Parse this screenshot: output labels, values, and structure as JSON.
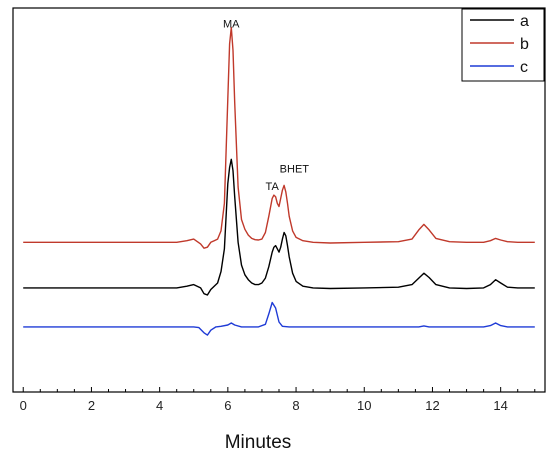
{
  "chart_data": {
    "type": "line",
    "title": "",
    "xlabel": "Minutes",
    "ylabel": "",
    "xlim": [
      -0.3,
      15.3
    ],
    "ylim": [
      -1.2,
      10.6
    ],
    "xticks": [
      0,
      2,
      4,
      6,
      8,
      10,
      12,
      14
    ],
    "xtick_labels": [
      "0",
      "2",
      "4",
      "6",
      "8",
      "10",
      "12",
      "14"
    ],
    "minor_tick_step": 0.5,
    "y_ticks_labeled": false,
    "grid": false,
    "legend_position": "top-right",
    "annotations": [
      {
        "text": "MA",
        "x": 6.1,
        "y": 10.0
      },
      {
        "text": "TA",
        "x": 7.3,
        "y": 5.0
      },
      {
        "text": "BHET",
        "x": 7.95,
        "y": 5.55
      }
    ],
    "series": [
      {
        "name": "a",
        "color": "#000000",
        "x": [
          0,
          4.5,
          4.8,
          5.0,
          5.2,
          5.3,
          5.4,
          5.5,
          5.6,
          5.7,
          5.8,
          5.9,
          6.0,
          6.05,
          6.1,
          6.15,
          6.2,
          6.3,
          6.4,
          6.5,
          6.6,
          6.7,
          6.8,
          6.9,
          7.0,
          7.1,
          7.2,
          7.3,
          7.35,
          7.4,
          7.45,
          7.5,
          7.55,
          7.6,
          7.65,
          7.7,
          7.75,
          7.8,
          7.9,
          8.0,
          8.2,
          8.5,
          9.0,
          10.0,
          11.0,
          11.4,
          11.6,
          11.75,
          11.9,
          12.1,
          12.5,
          13.0,
          13.5,
          13.7,
          13.85,
          14.0,
          14.2,
          14.5,
          15.0
        ],
        "y": [
          2.0,
          2.0,
          2.05,
          2.1,
          2.0,
          1.82,
          1.78,
          1.95,
          2.05,
          2.15,
          2.5,
          3.2,
          5.2,
          5.7,
          5.95,
          5.6,
          4.8,
          3.4,
          2.7,
          2.4,
          2.25,
          2.15,
          2.1,
          2.1,
          2.15,
          2.3,
          2.65,
          3.1,
          3.25,
          3.3,
          3.2,
          3.1,
          3.25,
          3.5,
          3.7,
          3.6,
          3.3,
          2.95,
          2.45,
          2.2,
          2.05,
          2.0,
          1.98,
          2.0,
          2.02,
          2.1,
          2.3,
          2.45,
          2.32,
          2.1,
          2.0,
          1.98,
          2.0,
          2.1,
          2.25,
          2.15,
          2.02,
          2.0,
          2.0
        ]
      },
      {
        "name": "b",
        "color": "#c0392b",
        "x": [
          0,
          4.5,
          4.8,
          5.0,
          5.2,
          5.3,
          5.4,
          5.5,
          5.6,
          5.7,
          5.8,
          5.9,
          6.0,
          6.05,
          6.1,
          6.15,
          6.2,
          6.3,
          6.4,
          6.5,
          6.6,
          6.7,
          6.8,
          6.9,
          7.0,
          7.1,
          7.2,
          7.3,
          7.35,
          7.4,
          7.45,
          7.5,
          7.55,
          7.6,
          7.65,
          7.7,
          7.75,
          7.8,
          7.9,
          8.0,
          8.2,
          8.5,
          9.0,
          10.0,
          11.0,
          11.4,
          11.6,
          11.75,
          11.9,
          12.1,
          12.5,
          13.0,
          13.5,
          13.7,
          13.85,
          14.0,
          14.2,
          14.5,
          15.0
        ],
        "y": [
          3.4,
          3.4,
          3.45,
          3.5,
          3.35,
          3.22,
          3.25,
          3.4,
          3.45,
          3.5,
          3.75,
          4.6,
          7.8,
          9.5,
          10.0,
          9.3,
          7.7,
          5.1,
          4.1,
          3.8,
          3.62,
          3.52,
          3.48,
          3.47,
          3.5,
          3.7,
          4.2,
          4.75,
          4.85,
          4.8,
          4.6,
          4.5,
          4.75,
          5.0,
          5.15,
          4.95,
          4.6,
          4.2,
          3.75,
          3.55,
          3.45,
          3.4,
          3.38,
          3.4,
          3.42,
          3.5,
          3.78,
          3.95,
          3.78,
          3.52,
          3.42,
          3.4,
          3.4,
          3.45,
          3.52,
          3.47,
          3.42,
          3.4,
          3.4
        ]
      },
      {
        "name": "c",
        "color": "#1f3bd6",
        "x": [
          0,
          4.5,
          5.0,
          5.15,
          5.3,
          5.4,
          5.5,
          5.65,
          5.8,
          6.0,
          6.1,
          6.2,
          6.4,
          6.6,
          6.9,
          7.1,
          7.2,
          7.3,
          7.4,
          7.5,
          7.6,
          7.8,
          8.0,
          8.5,
          9.0,
          10.0,
          11.0,
          11.6,
          11.75,
          11.9,
          12.5,
          13.5,
          13.7,
          13.85,
          14.0,
          14.2,
          15.0
        ],
        "y": [
          0.8,
          0.8,
          0.8,
          0.78,
          0.62,
          0.55,
          0.7,
          0.8,
          0.82,
          0.86,
          0.92,
          0.86,
          0.8,
          0.8,
          0.8,
          0.88,
          1.2,
          1.55,
          1.38,
          0.95,
          0.82,
          0.8,
          0.8,
          0.8,
          0.8,
          0.8,
          0.8,
          0.8,
          0.83,
          0.8,
          0.8,
          0.8,
          0.84,
          0.92,
          0.84,
          0.8,
          0.8
        ]
      }
    ]
  }
}
